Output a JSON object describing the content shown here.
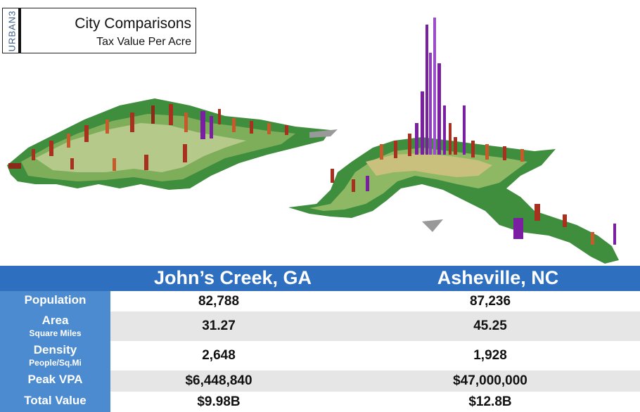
{
  "brand": "URBAN3",
  "title": "City Comparisons",
  "subtitle": "Tax Value Per Acre",
  "colors": {
    "header_band": "#2f6fbf",
    "label_column": "#4d8bd1",
    "row_alt": "#e6e6e6",
    "low_value": "#3e8e3e",
    "mid_value": "#a8301f",
    "high_value": "#7b1fa2"
  },
  "cities": [
    {
      "name": "John’s Creek, GA"
    },
    {
      "name": "Asheville, NC"
    }
  ],
  "rows": [
    {
      "label": "Population",
      "sublabel": "",
      "values": [
        "82,788",
        "87,236"
      ]
    },
    {
      "label": "Area",
      "sublabel": "Square Miles",
      "values": [
        "31.27",
        "45.25"
      ]
    },
    {
      "label": "Density",
      "sublabel": "People/Sq.Mi",
      "values": [
        "2,648",
        "1,928"
      ]
    },
    {
      "label": "Peak VPA",
      "sublabel": "",
      "values": [
        "$6,448,840",
        "$47,000,000"
      ]
    },
    {
      "label": "Total Value",
      "sublabel": "",
      "values": [
        "$9.98B",
        "$12.8B"
      ]
    }
  ]
}
